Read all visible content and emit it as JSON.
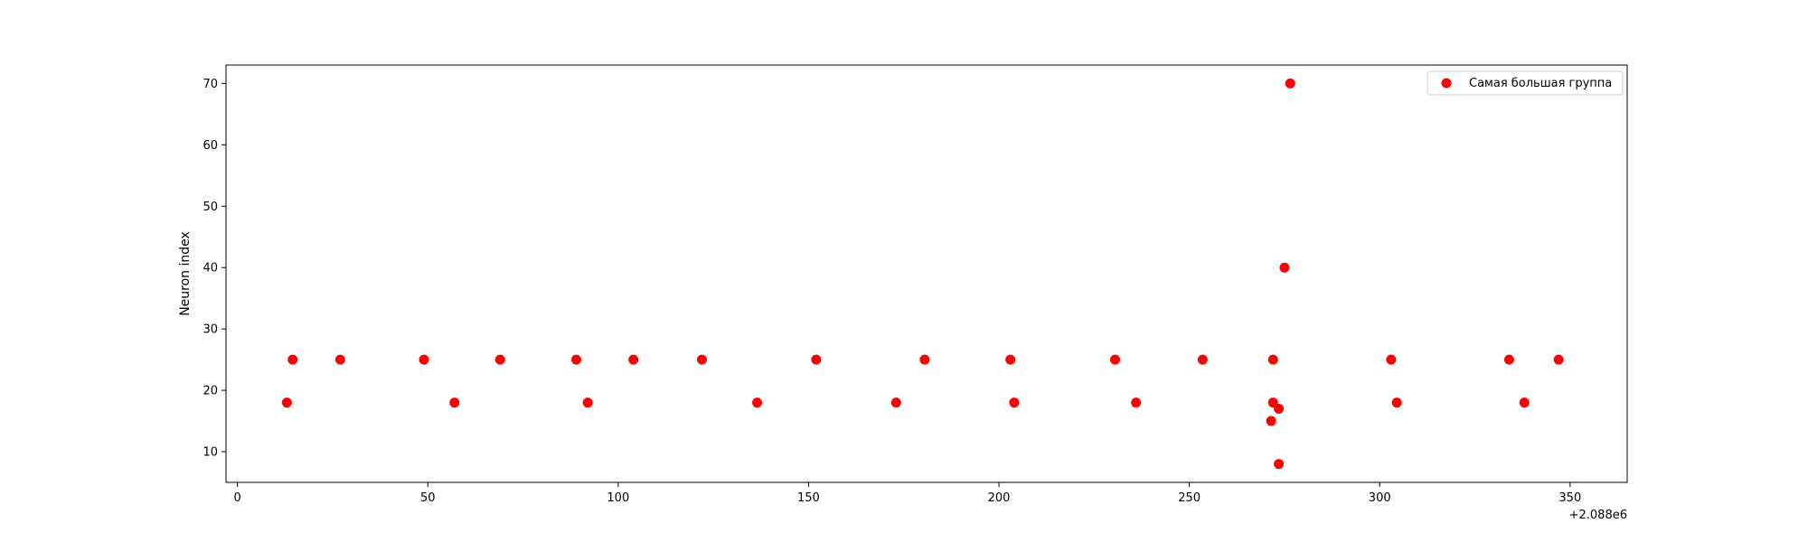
{
  "chart_data": {
    "type": "scatter",
    "title": "",
    "xlabel": "",
    "ylabel": "Neuron index",
    "x_offset_label": "+2.088e6",
    "xlim": [
      -3,
      365
    ],
    "ylim": [
      5,
      73
    ],
    "xticks": [
      0,
      50,
      100,
      150,
      200,
      250,
      300,
      350
    ],
    "yticks": [
      10,
      20,
      30,
      40,
      50,
      60,
      70
    ],
    "grid": false,
    "legend_position": "top-right",
    "series": [
      {
        "name": "Самая большая группа",
        "color": "#ff0000",
        "points": [
          {
            "x": 13,
            "y": 18
          },
          {
            "x": 14.5,
            "y": 25
          },
          {
            "x": 27,
            "y": 25
          },
          {
            "x": 49,
            "y": 25
          },
          {
            "x": 57,
            "y": 18
          },
          {
            "x": 69,
            "y": 25
          },
          {
            "x": 89,
            "y": 25
          },
          {
            "x": 92,
            "y": 18
          },
          {
            "x": 104,
            "y": 25
          },
          {
            "x": 122,
            "y": 25
          },
          {
            "x": 136.5,
            "y": 18
          },
          {
            "x": 152,
            "y": 25
          },
          {
            "x": 173,
            "y": 18
          },
          {
            "x": 180.5,
            "y": 25
          },
          {
            "x": 203,
            "y": 25
          },
          {
            "x": 204,
            "y": 18
          },
          {
            "x": 230.5,
            "y": 25
          },
          {
            "x": 236,
            "y": 18
          },
          {
            "x": 253.5,
            "y": 25
          },
          {
            "x": 271.5,
            "y": 15
          },
          {
            "x": 272,
            "y": 25
          },
          {
            "x": 272,
            "y": 18
          },
          {
            "x": 273.5,
            "y": 17
          },
          {
            "x": 273.5,
            "y": 8
          },
          {
            "x": 275,
            "y": 40
          },
          {
            "x": 276.5,
            "y": 70
          },
          {
            "x": 303,
            "y": 25
          },
          {
            "x": 304.5,
            "y": 18
          },
          {
            "x": 334,
            "y": 25
          },
          {
            "x": 338,
            "y": 18
          },
          {
            "x": 347,
            "y": 25
          }
        ]
      }
    ]
  }
}
